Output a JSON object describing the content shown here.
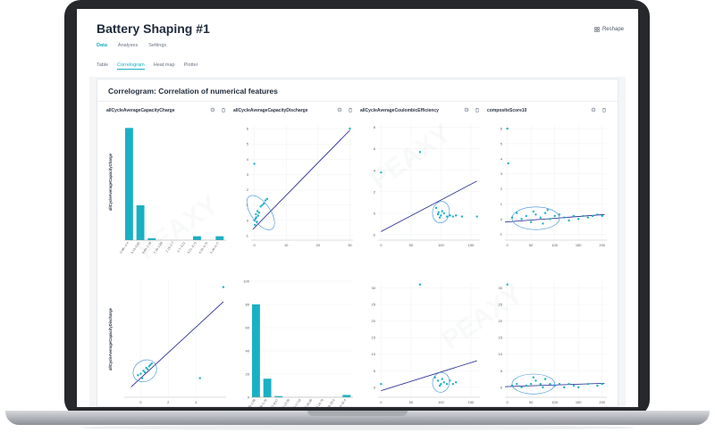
{
  "app": {
    "title": "Battery Shaping #1",
    "reshape_label": "Reshape",
    "tabs": [
      {
        "label": "Data",
        "active": true
      },
      {
        "label": "Analyses",
        "active": false
      },
      {
        "label": "Settings",
        "active": false
      }
    ],
    "subtabs": [
      {
        "label": "Table",
        "active": false
      },
      {
        "label": "Correlogram",
        "active": true
      },
      {
        "label": "Heat map",
        "active": false
      },
      {
        "label": "Plotter",
        "active": false
      }
    ]
  },
  "correlogram": {
    "title": "Correlogram: Correlation of numerical features",
    "accent": "#1ab0c4",
    "line_color": "#1a1f8a",
    "panels": [
      {
        "title": "allCycleAverageCapacityCharge",
        "ylabel": "allCycleAverageCapacityCharge",
        "chart_data": {
          "type": "bar",
          "categories": [
            "-0.86–-0.4",
            "0.13–0.65",
            "0.65–1.16",
            "1.16–1.68",
            "2.19–2.7",
            "2.7–3.21",
            "3.21–3.73",
            "4.24–4.75",
            "5.26–5.77"
          ],
          "values": [
            58,
            18,
            1,
            0,
            0,
            0,
            2,
            0,
            2
          ],
          "yticks": [],
          "ylim": [
            0,
            60
          ]
        }
      },
      {
        "title": "allCycleAverageCapacityDischarge",
        "chart_data": {
          "type": "scatter",
          "yticks": [
            6,
            5,
            4,
            3,
            2,
            1,
            0,
            -1
          ],
          "xticks": [
            0,
            10,
            20,
            30
          ],
          "xlim": [
            -1,
            31
          ],
          "ylim": [
            -1.3,
            6.3
          ],
          "points": [
            [
              0,
              3.7
            ],
            [
              30,
              6
            ],
            [
              0.5,
              0.4
            ],
            [
              1,
              0.6
            ],
            [
              2,
              0.9
            ],
            [
              3,
              1.1
            ],
            [
              4,
              1.4
            ],
            [
              1.5,
              0.5
            ],
            [
              0.2,
              -0.3
            ],
            [
              0.8,
              -0.1
            ],
            [
              2.5,
              1
            ],
            [
              3.5,
              1.3
            ],
            [
              0,
              0
            ],
            [
              0.4,
              0.1
            ],
            [
              1.2,
              0.3
            ],
            [
              0.6,
              0.2
            ]
          ],
          "line": [
            [
              -0.5,
              -0.6
            ],
            [
              30,
              5.9
            ]
          ],
          "ellipse": {
            "cx": 2,
            "cy": 0.5,
            "rx": 3,
            "ry": 1.3,
            "rot": -35
          }
        }
      },
      {
        "title": "allCycleAverageCoulombicEfficiency",
        "chart_data": {
          "type": "scatter",
          "yticks": [
            8,
            6,
            4,
            2,
            0,
            -2
          ],
          "xticks": [
            0,
            50,
            100,
            150
          ],
          "xlim": [
            -5,
            165
          ],
          "ylim": [
            -2.5,
            8.3
          ],
          "points": [
            [
              0,
              3.8
            ],
            [
              65,
              5.7
            ],
            [
              92,
              0.5
            ],
            [
              95,
              -0.1
            ],
            [
              100,
              -0.2
            ],
            [
              105,
              0
            ],
            [
              110,
              -0.3
            ],
            [
              115,
              -0.2
            ],
            [
              120,
              -0.3
            ],
            [
              125,
              -0.2
            ],
            [
              135,
              -0.3
            ],
            [
              160,
              -0.3
            ],
            [
              98,
              -0.4
            ],
            [
              102,
              0.2
            ],
            [
              96,
              0.1
            ]
          ],
          "line": [
            [
              0,
              -1.7
            ],
            [
              160,
              3
            ]
          ],
          "ellipse": {
            "cx": 100,
            "cy": 0.1,
            "rx": 14,
            "ry": 1,
            "rot": 10
          }
        }
      },
      {
        "title": "compositeScore10",
        "chart_data": {
          "type": "scatter",
          "yticks": [
            6,
            5,
            4,
            3,
            2,
            1,
            0,
            -1
          ],
          "xticks": [
            0,
            50,
            100,
            150,
            200
          ],
          "xlim": [
            -5,
            210
          ],
          "ylim": [
            -1.4,
            6.3
          ],
          "points": [
            [
              0,
              6
            ],
            [
              2,
              3.7
            ],
            [
              10,
              0.1
            ],
            [
              20,
              0.4
            ],
            [
              30,
              0
            ],
            [
              40,
              0.2
            ],
            [
              50,
              -0.2
            ],
            [
              60,
              0.3
            ],
            [
              70,
              0.1
            ],
            [
              80,
              0.4
            ],
            [
              90,
              0
            ],
            [
              100,
              0.2
            ],
            [
              110,
              0.3
            ],
            [
              120,
              0.1
            ],
            [
              130,
              -0.1
            ],
            [
              140,
              0.2
            ],
            [
              150,
              0
            ],
            [
              160,
              0.2
            ],
            [
              170,
              0.1
            ],
            [
              180,
              0.2
            ],
            [
              190,
              0.3
            ],
            [
              200,
              0.2
            ],
            [
              55,
              0.5
            ],
            [
              75,
              -0.3
            ],
            [
              85,
              0.6
            ]
          ],
          "line": [
            [
              -5,
              -0.2
            ],
            [
              205,
              0.3
            ]
          ],
          "ellipse": {
            "cx": 60,
            "cy": 0.05,
            "rx": 50,
            "ry": 0.75,
            "rot": 0
          }
        }
      },
      {
        "title": "",
        "ylabel": "allCycleAverageCapacityDischarge",
        "chart_data": {
          "type": "scatter",
          "yticks": [],
          "xticks": [
            0,
            2,
            4
          ],
          "xlim": [
            -1.2,
            6.2
          ],
          "ylim": [
            -1.3,
            6.6
          ],
          "points": [
            [
              6,
              6.2
            ],
            [
              4.3,
              0
            ],
            [
              0,
              0.3
            ],
            [
              0.2,
              0.5
            ],
            [
              0.4,
              0.7
            ],
            [
              0.6,
              0.8
            ],
            [
              0.8,
              1
            ],
            [
              -0.2,
              0.2
            ],
            [
              0.1,
              0
            ],
            [
              0.3,
              0.4
            ],
            [
              0.5,
              0.6
            ],
            [
              0.7,
              0.9
            ]
          ],
          "line": [
            [
              -0.7,
              -0.6
            ],
            [
              6,
              5.2
            ]
          ],
          "ellipse": {
            "cx": 0.3,
            "cy": 0.5,
            "rx": 0.9,
            "ry": 0.7,
            "rot": -35
          }
        }
      },
      {
        "title": "",
        "chart_data": {
          "type": "bar",
          "categories": [
            "0.05–1.96",
            "3.86–5.76",
            "7.67–9.57",
            "11.47–13.38",
            "15.28–17.18",
            "19.08–20.99",
            "22.89–24.79",
            "26.69–28.6",
            "30.5–32.4"
          ],
          "values": [
            80,
            16,
            1,
            0,
            0,
            0,
            0,
            0,
            2
          ],
          "yticks": [
            100,
            80,
            60,
            40,
            20,
            0
          ],
          "ylim": [
            0,
            100
          ]
        }
      },
      {
        "title": "",
        "chart_data": {
          "type": "scatter",
          "yticks": [
            30,
            25,
            20,
            15,
            10,
            5,
            0
          ],
          "xticks": [
            0,
            50,
            100,
            150
          ],
          "xlim": [
            -5,
            165
          ],
          "ylim": [
            -3,
            32
          ],
          "points": [
            [
              65,
              31
            ],
            [
              0,
              1
            ],
            [
              90,
              3
            ],
            [
              95,
              2
            ],
            [
              100,
              1
            ],
            [
              105,
              1.5
            ],
            [
              110,
              1
            ],
            [
              115,
              2
            ],
            [
              120,
              1
            ],
            [
              125,
              1.5
            ],
            [
              98,
              0.5
            ],
            [
              102,
              2.5
            ]
          ],
          "line": [
            [
              0,
              -1
            ],
            [
              160,
              8
            ]
          ],
          "ellipse": {
            "cx": 100,
            "cy": 1.5,
            "rx": 14,
            "ry": 3,
            "rot": 10
          }
        }
      },
      {
        "title": "",
        "chart_data": {
          "type": "scatter",
          "yticks": [
            30,
            25,
            20,
            15,
            10,
            5,
            0
          ],
          "xticks": [
            0,
            50,
            100,
            150,
            200
          ],
          "xlim": [
            -5,
            210
          ],
          "ylim": [
            -3,
            32
          ],
          "points": [
            [
              0,
              31
            ],
            [
              10,
              0.5
            ],
            [
              20,
              1
            ],
            [
              30,
              0
            ],
            [
              40,
              0.5
            ],
            [
              50,
              1
            ],
            [
              60,
              2
            ],
            [
              70,
              1
            ],
            [
              80,
              2.5
            ],
            [
              90,
              1
            ],
            [
              100,
              0.5
            ],
            [
              110,
              1
            ],
            [
              120,
              0
            ],
            [
              130,
              1
            ],
            [
              140,
              0.5
            ],
            [
              150,
              0
            ],
            [
              170,
              1
            ],
            [
              190,
              0.5
            ],
            [
              200,
              1
            ],
            [
              55,
              3
            ],
            [
              75,
              0
            ]
          ],
          "line": [
            [
              -5,
              0.2
            ],
            [
              205,
              1.2
            ]
          ],
          "ellipse": {
            "cx": 55,
            "cy": 1,
            "rx": 45,
            "ry": 3,
            "rot": 0
          }
        }
      }
    ]
  }
}
